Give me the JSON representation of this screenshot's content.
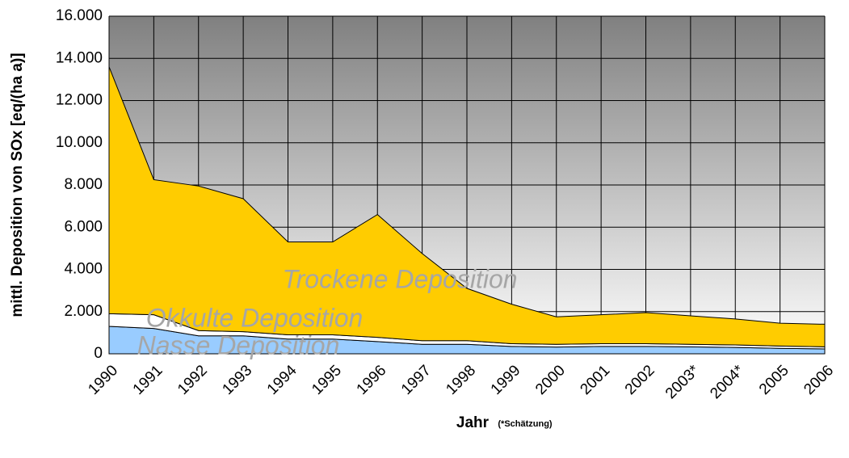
{
  "chart_data": {
    "type": "stacked_area",
    "y_label": "mittl. Deposition von SOx [eq/(ha a)]",
    "x_label": "Jahr",
    "x_note": "(*Schätzung)",
    "categories": [
      "1990",
      "1991",
      "1992",
      "1993",
      "1994",
      "1995",
      "1996",
      "1997",
      "1998",
      "1999",
      "2000",
      "2001",
      "2002",
      "2003*",
      "2004*",
      "2005",
      "2006"
    ],
    "series": [
      {
        "name": "Nasse Deposition",
        "color": "#99ccff",
        "values": [
          1300,
          1200,
          850,
          850,
          700,
          700,
          580,
          450,
          450,
          350,
          320,
          350,
          350,
          330,
          300,
          260,
          230
        ]
      },
      {
        "name": "Okkulte Deposition",
        "color": "#ffffff",
        "values": [
          600,
          650,
          250,
          200,
          200,
          200,
          200,
          170,
          170,
          130,
          130,
          130,
          130,
          120,
          120,
          110,
          100
        ]
      },
      {
        "name": "Trockene Deposition",
        "color": "#ffcc00",
        "values": [
          11700,
          6400,
          6850,
          6300,
          4400,
          4400,
          5820,
          4130,
          2480,
          1870,
          1300,
          1370,
          1470,
          1350,
          1230,
          1080,
          1070
        ]
      }
    ],
    "ylim": [
      0,
      16000
    ],
    "yticks": [
      0,
      {
        "value": 2000,
        "label": "2.000"
      },
      {
        "value": 4000,
        "label": "4.000"
      },
      {
        "value": 6000,
        "label": "6.000"
      },
      {
        "value": 8000,
        "label": "8.000"
      },
      {
        "value": 10000,
        "label": "10.000"
      },
      {
        "value": 12000,
        "label": "12.000"
      },
      {
        "value": 14000,
        "label": "14.000"
      },
      {
        "value": 16000,
        "label": "16.000"
      }
    ],
    "grid": true
  }
}
